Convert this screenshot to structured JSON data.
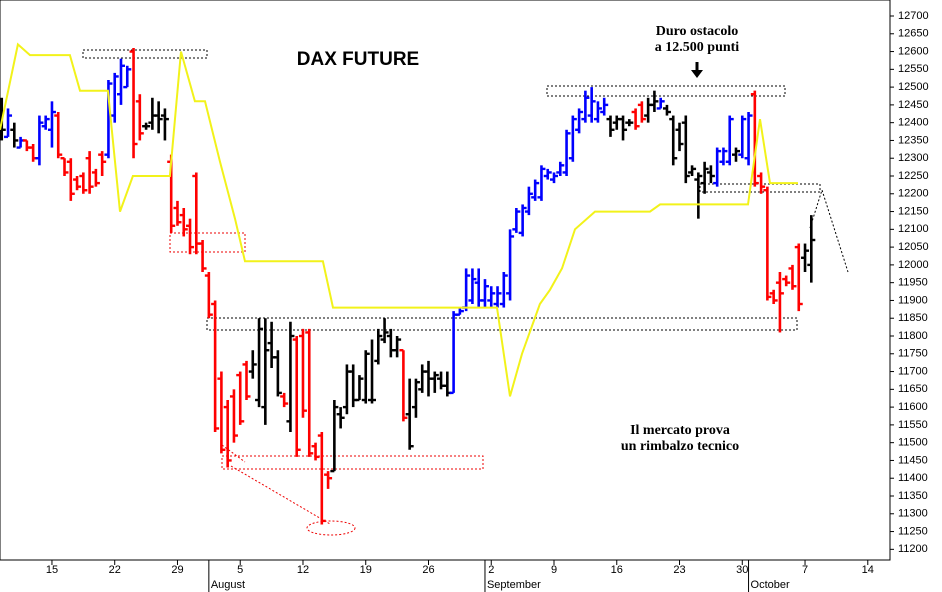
{
  "chart_data": {
    "type": "ohlc",
    "title": "DAX FUTURE",
    "annotations": [
      [
        "Duro ostacolo",
        "a 12.500 punti"
      ],
      [
        "Il mercato prova",
        "un rimbalzo tecnico"
      ]
    ],
    "xlim": [
      0.86,
      71.77
    ],
    "ylim": [
      11170,
      12745
    ],
    "yticks": [
      11200,
      11250,
      11300,
      11350,
      11400,
      11450,
      11500,
      11550,
      11600,
      11650,
      11700,
      11750,
      11800,
      11850,
      11900,
      11950,
      12000,
      12050,
      12100,
      12150,
      12200,
      12250,
      12300,
      12350,
      12400,
      12450,
      12500,
      12550,
      12600,
      12650,
      12700
    ],
    "xticks": [
      {
        "value": 5,
        "label": "15"
      },
      {
        "value": 10,
        "label": "22"
      },
      {
        "value": 15,
        "label": "29"
      },
      {
        "value": 20,
        "label": "5"
      },
      {
        "value": 25,
        "label": "12"
      },
      {
        "value": 30,
        "label": "19"
      },
      {
        "value": 35,
        "label": "26"
      },
      {
        "value": 40,
        "label": "2"
      },
      {
        "value": 45,
        "label": "9"
      },
      {
        "value": 50,
        "label": "16"
      },
      {
        "value": 55,
        "label": "23"
      },
      {
        "value": 60,
        "label": "30"
      },
      {
        "value": 65,
        "label": "7"
      },
      {
        "value": 70,
        "label": "14"
      }
    ],
    "month_ticks": [
      {
        "value": 17.5,
        "label": "August"
      },
      {
        "value": 39.5,
        "label": "September"
      },
      {
        "value": 60.5,
        "label": "October"
      }
    ],
    "bars": {
      "x": [
        1,
        1.5,
        2,
        2.5,
        3,
        3.5,
        4,
        4.5,
        5,
        5.5,
        6,
        6.5,
        7,
        7.5,
        8,
        8.5,
        9,
        9.5,
        10,
        10.5,
        11,
        11.5,
        12,
        12.5,
        13,
        13.5,
        14,
        14.5,
        15,
        15.5,
        16,
        16.5,
        17,
        17.5,
        18,
        18.5,
        19,
        19.5,
        20,
        20.5,
        21,
        21.5,
        22,
        22.5,
        23,
        23.5,
        24,
        24.5,
        25,
        25.5,
        26,
        26.5,
        27,
        27.5,
        28,
        28.5,
        29,
        29.5,
        30,
        30.5,
        31,
        31.5,
        32,
        32.5,
        33,
        33.5,
        34,
        34.5,
        35,
        35.5,
        36,
        36.5,
        37,
        37.5,
        38,
        38.5,
        39,
        39.5,
        40,
        40.5,
        41,
        41.5,
        42,
        42.5,
        43,
        43.5,
        44,
        44.5,
        45,
        45.5,
        46,
        46.5,
        47,
        47.5,
        48,
        48.5,
        49,
        49.5,
        50,
        50.5,
        51,
        51.5,
        52,
        52.5,
        53,
        53.5,
        54,
        54.5,
        55,
        55.5,
        56,
        56.5,
        57,
        57.5,
        58,
        58.5,
        59,
        59.5,
        60,
        60.5,
        61,
        61.5,
        62,
        62.5,
        63,
        63.5,
        64,
        64.5,
        65,
        65.5
      ],
      "open": [
        12420,
        12360,
        12380,
        12330,
        12350,
        12330,
        12300,
        12390,
        12380,
        12420,
        12300,
        12290,
        12240,
        12250,
        12300,
        12260,
        12310,
        12310,
        12420,
        12480,
        12500,
        12600,
        12460,
        12390,
        12400,
        12420,
        12420,
        12290,
        12160,
        12140,
        12110,
        12250,
        12060,
        11970,
        11890,
        11680,
        11600,
        11630,
        11690,
        11720,
        11700,
        11620,
        11600,
        11780,
        11740,
        11630,
        11560,
        11790,
        11800,
        11810,
        11490,
        11520,
        11410,
        11420,
        11580,
        11600,
        11700,
        11620,
        11620,
        11620,
        11730,
        11790,
        11800,
        11760,
        11760,
        11580,
        11600,
        11650,
        11700,
        11680,
        11680,
        11660,
        11640,
        11860,
        11880,
        11900,
        11950,
        11900,
        11900,
        11890,
        11890,
        11920,
        12100,
        12090,
        12150,
        12190,
        12190,
        12250,
        12240,
        12260,
        12260,
        12300,
        12380,
        12410,
        12420,
        12410,
        12430,
        12410,
        12400,
        12410,
        12400,
        12430,
        12450,
        12420,
        12450,
        12440,
        12440,
        12410,
        12380,
        12400,
        12260,
        12240,
        12230,
        12260,
        12230,
        12290,
        12290,
        12310,
        12310,
        12300,
        12480,
        12250,
        12210,
        11920,
        11950,
        11960,
        11990,
        12050,
        12020,
        12000
      ],
      "high": [
        12470,
        12440,
        12400,
        12360,
        12350,
        12340,
        12420,
        12420,
        12460,
        12430,
        12300,
        12300,
        12250,
        12260,
        12320,
        12270,
        12320,
        12520,
        12540,
        12580,
        12560,
        12610,
        12480,
        12400,
        12470,
        12460,
        12440,
        12310,
        12180,
        12160,
        12130,
        12260,
        12070,
        11980,
        11900,
        11700,
        11620,
        11650,
        11700,
        11730,
        11760,
        11850,
        11850,
        11840,
        11760,
        11640,
        11840,
        11800,
        11820,
        11820,
        11500,
        11530,
        11420,
        11620,
        11600,
        11720,
        11720,
        11690,
        11760,
        11790,
        11820,
        11850,
        11820,
        11800,
        11760,
        11680,
        11680,
        11720,
        11730,
        11700,
        11700,
        11700,
        11870,
        11880,
        11990,
        11990,
        11990,
        11960,
        11940,
        11940,
        11980,
        12100,
        12160,
        12170,
        12220,
        12240,
        12280,
        12270,
        12260,
        12290,
        12380,
        12420,
        12440,
        12490,
        12500,
        12460,
        12470,
        12420,
        12420,
        12420,
        12410,
        12440,
        12460,
        12470,
        12490,
        12470,
        12450,
        12420,
        12400,
        12420,
        12280,
        12260,
        12290,
        12280,
        12330,
        12330,
        12420,
        12330,
        12420,
        12430,
        12490,
        12260,
        12220,
        11930,
        11980,
        11970,
        12000,
        12060,
        12060,
        12140
      ],
      "low": [
        12350,
        12360,
        12330,
        12330,
        12320,
        12290,
        12280,
        12380,
        12330,
        12300,
        12250,
        12180,
        12210,
        12200,
        12200,
        12220,
        12250,
        12300,
        12400,
        12450,
        12500,
        12300,
        12350,
        12380,
        12380,
        12370,
        12350,
        12090,
        12110,
        12080,
        12030,
        12030,
        11980,
        11850,
        11530,
        11470,
        11430,
        11500,
        11550,
        11620,
        11680,
        11600,
        11550,
        11710,
        11630,
        11600,
        11530,
        11460,
        11570,
        11460,
        11450,
        11270,
        11370,
        11420,
        11540,
        11580,
        11600,
        11620,
        11610,
        11610,
        11720,
        11780,
        11740,
        11740,
        11560,
        11480,
        11570,
        11640,
        11630,
        11640,
        11650,
        11630,
        11640,
        11860,
        11870,
        11890,
        11880,
        11880,
        11880,
        11880,
        11880,
        11900,
        12090,
        12080,
        12140,
        12180,
        12180,
        12240,
        12230,
        12250,
        12250,
        12290,
        12370,
        12400,
        12400,
        12400,
        12420,
        12360,
        12380,
        12350,
        12390,
        12380,
        12400,
        12400,
        12430,
        12440,
        12420,
        12280,
        12320,
        12230,
        12250,
        12130,
        12200,
        12230,
        12220,
        12280,
        12280,
        12290,
        12300,
        12280,
        12220,
        12200,
        11900,
        11890,
        11810,
        11940,
        11930,
        11870,
        11980,
        11950
      ],
      "close": [
        12380,
        12420,
        12350,
        12350,
        12330,
        12300,
        12400,
        12410,
        12430,
        12310,
        12260,
        12200,
        12220,
        12210,
        12220,
        12230,
        12290,
        12510,
        12530,
        12560,
        12550,
        12340,
        12370,
        12390,
        12420,
        12410,
        12410,
        12110,
        12120,
        12100,
        12050,
        12060,
        11990,
        11860,
        11540,
        11480,
        11450,
        11520,
        11560,
        11630,
        11720,
        11820,
        11760,
        11740,
        11640,
        11610,
        11800,
        11480,
        11590,
        11470,
        11460,
        11280,
        11400,
        11600,
        11570,
        11700,
        11620,
        11680,
        11750,
        11620,
        11800,
        11810,
        11760,
        11790,
        11570,
        11490,
        11670,
        11700,
        11680,
        11690,
        11660,
        11640,
        11860,
        11870,
        11970,
        11960,
        11900,
        11940,
        11920,
        11920,
        11970,
        12080,
        12150,
        12160,
        12200,
        12230,
        12270,
        12260,
        12250,
        12280,
        12370,
        12410,
        12430,
        12470,
        12460,
        12440,
        12450,
        12380,
        12410,
        12380,
        12400,
        12390,
        12410,
        12450,
        12460,
        12460,
        12430,
        12300,
        12340,
        12250,
        12270,
        12250,
        12270,
        12250,
        12320,
        12320,
        12410,
        12320,
        12410,
        12420,
        12230,
        12220,
        11910,
        11900,
        11920,
        11950,
        11940,
        11890,
        12040,
        12070
      ],
      "colors": [
        "black",
        "blue",
        "black",
        "blue",
        "red",
        "red",
        "blue",
        "blue",
        "blue",
        "red",
        "red",
        "red",
        "red",
        "red",
        "red",
        "red",
        "red",
        "blue",
        "blue",
        "blue",
        "blue",
        "red",
        "red",
        "black",
        "black",
        "black",
        "black",
        "red",
        "red",
        "red",
        "red",
        "red",
        "red",
        "red",
        "red",
        "red",
        "red",
        "red",
        "red",
        "red",
        "black",
        "black",
        "black",
        "black",
        "black",
        "red",
        "black",
        "red",
        "red",
        "red",
        "red",
        "red",
        "red",
        "black",
        "black",
        "black",
        "black",
        "black",
        "black",
        "black",
        "black",
        "black",
        "black",
        "black",
        "red",
        "black",
        "black",
        "black",
        "black",
        "black",
        "black",
        "black",
        "blue",
        "blue",
        "blue",
        "blue",
        "blue",
        "blue",
        "blue",
        "blue",
        "blue",
        "blue",
        "blue",
        "blue",
        "blue",
        "blue",
        "blue",
        "blue",
        "blue",
        "blue",
        "blue",
        "blue",
        "blue",
        "blue",
        "blue",
        "blue",
        "blue",
        "black",
        "black",
        "black",
        "black",
        "red",
        "red",
        "black",
        "black",
        "blue",
        "black",
        "black",
        "black",
        "black",
        "black",
        "black",
        "black",
        "black",
        "blue",
        "blue",
        "blue",
        "black",
        "blue",
        "blue",
        "red",
        "red",
        "red",
        "red",
        "red",
        "red",
        "red",
        "red",
        "black",
        "black"
      ]
    },
    "line": {
      "color": "#f2f21a",
      "x": [
        0.86,
        2.29,
        3.25,
        6.43,
        7.23,
        9.46,
        10.42,
        11.45,
        14.4,
        15.28,
        16.39,
        17.19,
        18.39,
        19.58,
        20.38,
        26.59,
        27.39,
        40.46,
        41.49,
        42.45,
        43.88,
        44.68,
        45.64,
        46.67,
        48.27,
        52.65,
        53.45,
        60.46,
        61.41,
        62.21,
        64.44
      ],
      "values": [
        12380,
        12620,
        12590,
        12590,
        12490,
        12490,
        12150,
        12250,
        12250,
        12600,
        12460,
        12460,
        12290,
        12130,
        12010,
        12010,
        11880,
        11880,
        11630,
        11750,
        11890,
        11930,
        11990,
        12100,
        12150,
        12150,
        12170,
        12170,
        12410,
        12230,
        12230
      ]
    }
  }
}
